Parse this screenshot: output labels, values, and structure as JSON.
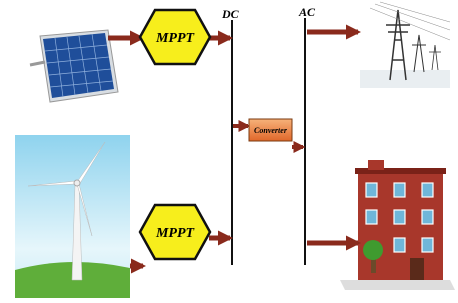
{
  "buses": {
    "dc": "DC",
    "ac": "AC"
  },
  "nodes": [
    {
      "label": "MPPT"
    },
    {
      "label": "MPPT"
    },
    {
      "label": "Converter"
    }
  ]
}
